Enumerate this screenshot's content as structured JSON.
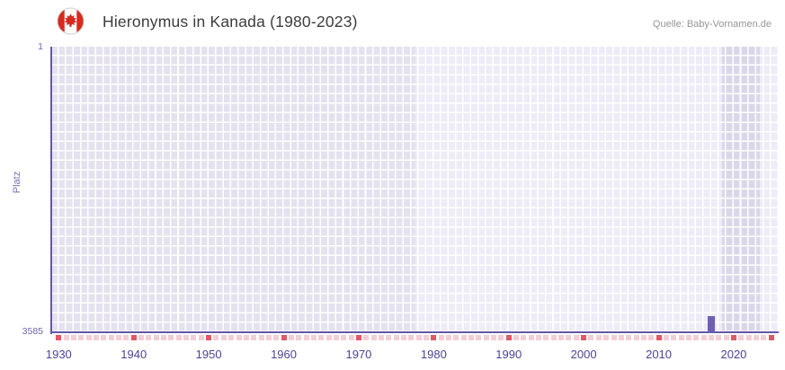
{
  "header": {
    "title": "Hieronymus in Kanada (1980-2023)",
    "source": "Quelle: Baby-Vornamen.de",
    "flag": "canada-flag"
  },
  "chart_data": {
    "type": "bar",
    "title": "Hieronymus in Kanada (1980-2023)",
    "xlabel": "",
    "ylabel": "Platz",
    "y_axis": {
      "min": 1,
      "max": 3585,
      "inverted": true,
      "top_tick": "1",
      "bottom_tick": "3585"
    },
    "x_axis": {
      "min": 1929,
      "max": 2026,
      "ticks": [
        1930,
        1940,
        1950,
        1960,
        1970,
        1980,
        1990,
        2000,
        2010,
        2020
      ]
    },
    "series": [
      {
        "name": "Platz",
        "color": "#6f5fb5",
        "points": [
          {
            "year": 2017,
            "rank": 3380
          }
        ]
      }
    ],
    "bands": [
      {
        "name": "band-pre-data",
        "from": 1929,
        "to": 1977.5,
        "color": "#e5e2ef"
      },
      {
        "name": "band-data",
        "from": 1977.5,
        "to": 2018.5,
        "color": "#eeecf7"
      },
      {
        "name": "band-recent",
        "from": 2018.5,
        "to": 2023.5,
        "color": "#dbd7ea"
      },
      {
        "name": "band-tail",
        "from": 2023.5,
        "to": 2026,
        "color": "#eeecf7"
      }
    ],
    "missing_markers": {
      "start_year": 1930,
      "end_year": 2025,
      "pink_color": "#f2cdd6",
      "red_color": "#e15864",
      "red_years": [
        1930,
        1940,
        1950,
        1960,
        1970,
        1980,
        1990,
        2000,
        2010,
        2020,
        2025
      ]
    },
    "grid": {
      "line_color": "#ffffff"
    },
    "colors": {
      "axis": "#6657a8",
      "x_tick_label": "#4a4496",
      "y_tick_label": "#6f64ae",
      "y_axis_title": "#7b6fb5"
    },
    "legend": "none"
  }
}
